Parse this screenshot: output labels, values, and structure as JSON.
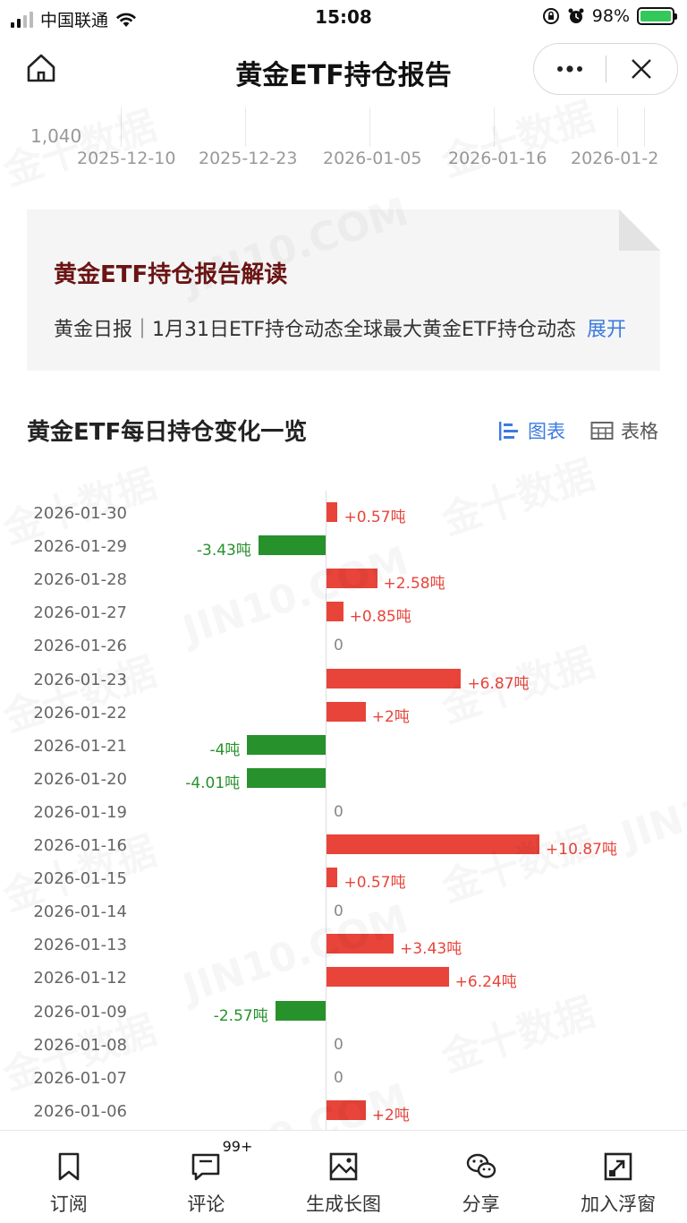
{
  "status_bar": {
    "carrier": "中国联通",
    "time": "15:08",
    "battery": "98%"
  },
  "header": {
    "title": "黄金ETF持仓报告"
  },
  "top_chart": {
    "y_tick": "1,040",
    "x_ticks": [
      "2025-12-10",
      "2025-12-23",
      "2026-01-05",
      "2026-01-16",
      "2026-01-2"
    ]
  },
  "report": {
    "title": "黄金ETF持仓报告解读",
    "summary": "黄金日报｜1月31日ETF持仓动态全球最大黄金ETF持仓动态",
    "expand": "展开"
  },
  "section": {
    "title": "黄金ETF每日持仓变化一览",
    "toggle_chart": "图表",
    "toggle_table": "表格"
  },
  "chart_data": {
    "type": "bar",
    "orientation": "horizontal",
    "unit": "吨",
    "categories": [
      "2026-01-30",
      "2026-01-29",
      "2026-01-28",
      "2026-01-27",
      "2026-01-26",
      "2026-01-23",
      "2026-01-22",
      "2026-01-21",
      "2026-01-20",
      "2026-01-19",
      "2026-01-16",
      "2026-01-15",
      "2026-01-14",
      "2026-01-13",
      "2026-01-12",
      "2026-01-09",
      "2026-01-08",
      "2026-01-07",
      "2026-01-06"
    ],
    "values": [
      0.57,
      -3.43,
      2.58,
      0.85,
      0,
      6.87,
      2,
      -4,
      -4.01,
      0,
      10.87,
      0.57,
      0,
      3.43,
      6.24,
      -2.57,
      0,
      0,
      2
    ],
    "labels": [
      "+0.57吨",
      "-3.43吨",
      "+2.58吨",
      "+0.85吨",
      "0",
      "+6.87吨",
      "+2吨",
      "-4吨",
      "-4.01吨",
      "0",
      "+10.87吨",
      "+0.57吨",
      "0",
      "+3.43吨",
      "+6.24吨",
      "-2.57吨",
      "0",
      "0",
      "+2吨"
    ],
    "colors": {
      "positive": "#e8443a",
      "negative": "#27912b"
    }
  },
  "watermarks": [
    "金十数据",
    "JIN10.COM"
  ],
  "tabbar": {
    "items": [
      {
        "label": "订阅",
        "icon": "bookmark-icon"
      },
      {
        "label": "评论",
        "icon": "comment-icon",
        "badge": "99+"
      },
      {
        "label": "生成长图",
        "icon": "image-icon"
      },
      {
        "label": "分享",
        "icon": "wechat-icon"
      },
      {
        "label": "加入浮窗",
        "icon": "float-window-icon"
      }
    ]
  }
}
